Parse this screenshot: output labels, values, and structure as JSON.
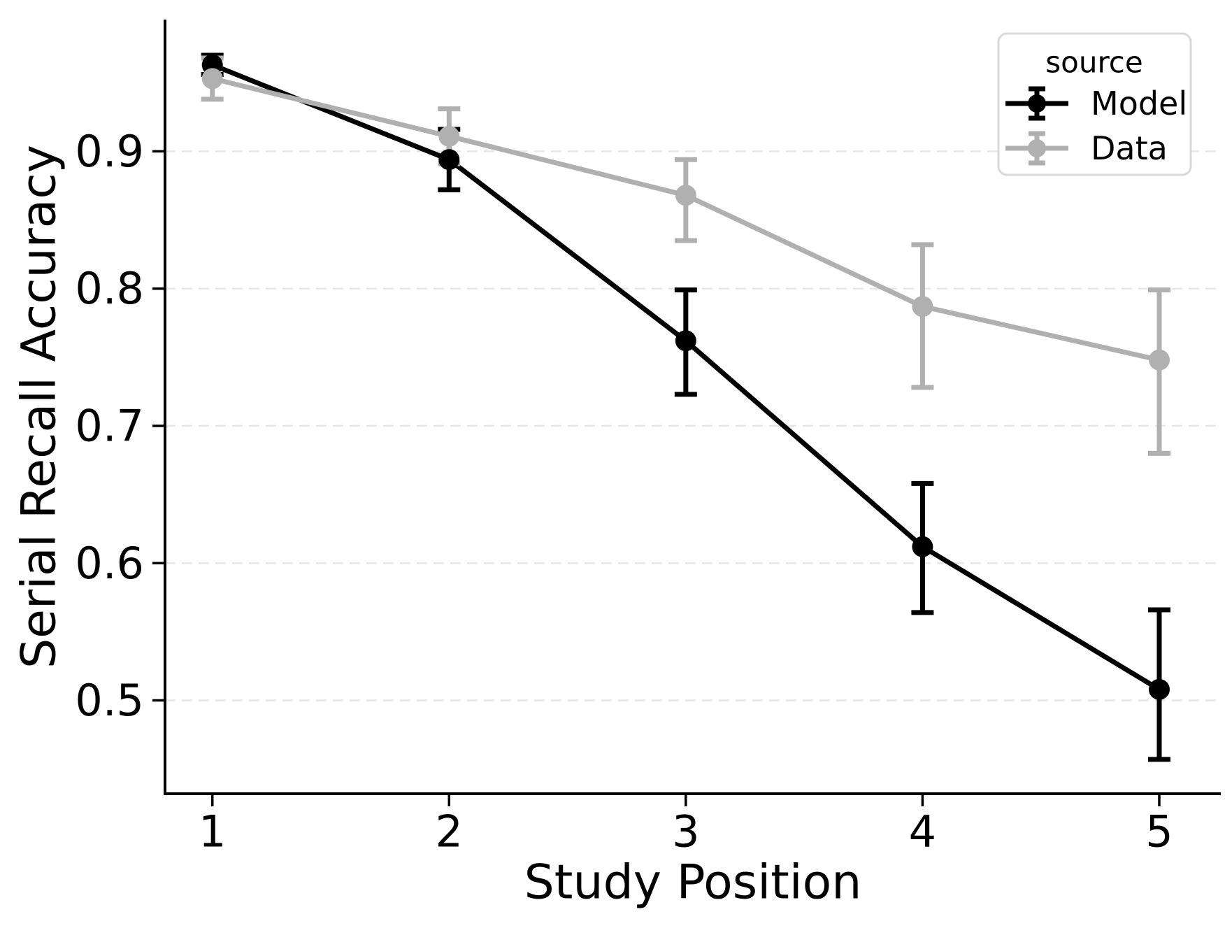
{
  "chart_data": {
    "type": "line",
    "title": "",
    "xlabel": "Study Position",
    "ylabel": "Serial Recall Accuracy",
    "x": [
      1,
      2,
      3,
      4,
      5
    ],
    "x_tick_labels": [
      "1",
      "2",
      "3",
      "4",
      "5"
    ],
    "y_tick_values": [
      0.5,
      0.6,
      0.7,
      0.8,
      0.9
    ],
    "y_tick_labels": [
      "0.5",
      "0.6",
      "0.7",
      "0.8",
      "0.9"
    ],
    "xlim": [
      0.8,
      5.26
    ],
    "ylim": [
      0.432,
      0.996
    ],
    "grid": "horizontal-dashed",
    "legend": {
      "title": "source",
      "position": "upper-right"
    },
    "series": [
      {
        "name": "Model",
        "color": "#000000",
        "marker": "circle",
        "values": [
          0.963,
          0.894,
          0.762,
          0.612,
          0.508
        ],
        "ci_low": [
          0.956,
          0.872,
          0.723,
          0.564,
          0.457
        ],
        "ci_high": [
          0.97,
          0.916,
          0.799,
          0.658,
          0.566
        ]
      },
      {
        "name": "Data",
        "color": "#b0b0b0",
        "marker": "circle",
        "values": [
          0.953,
          0.911,
          0.868,
          0.787,
          0.748
        ],
        "ci_low": [
          0.938,
          0.891,
          0.835,
          0.728,
          0.68
        ],
        "ci_high": [
          0.968,
          0.931,
          0.894,
          0.832,
          0.799
        ]
      }
    ]
  },
  "colors": {
    "background": "#ffffff",
    "grid": "#e7e7e7",
    "spine": "#000000",
    "tick": "#000000",
    "text": "#000000",
    "legend_border": "#d9d9d9",
    "legend_background": "#ffffff"
  }
}
